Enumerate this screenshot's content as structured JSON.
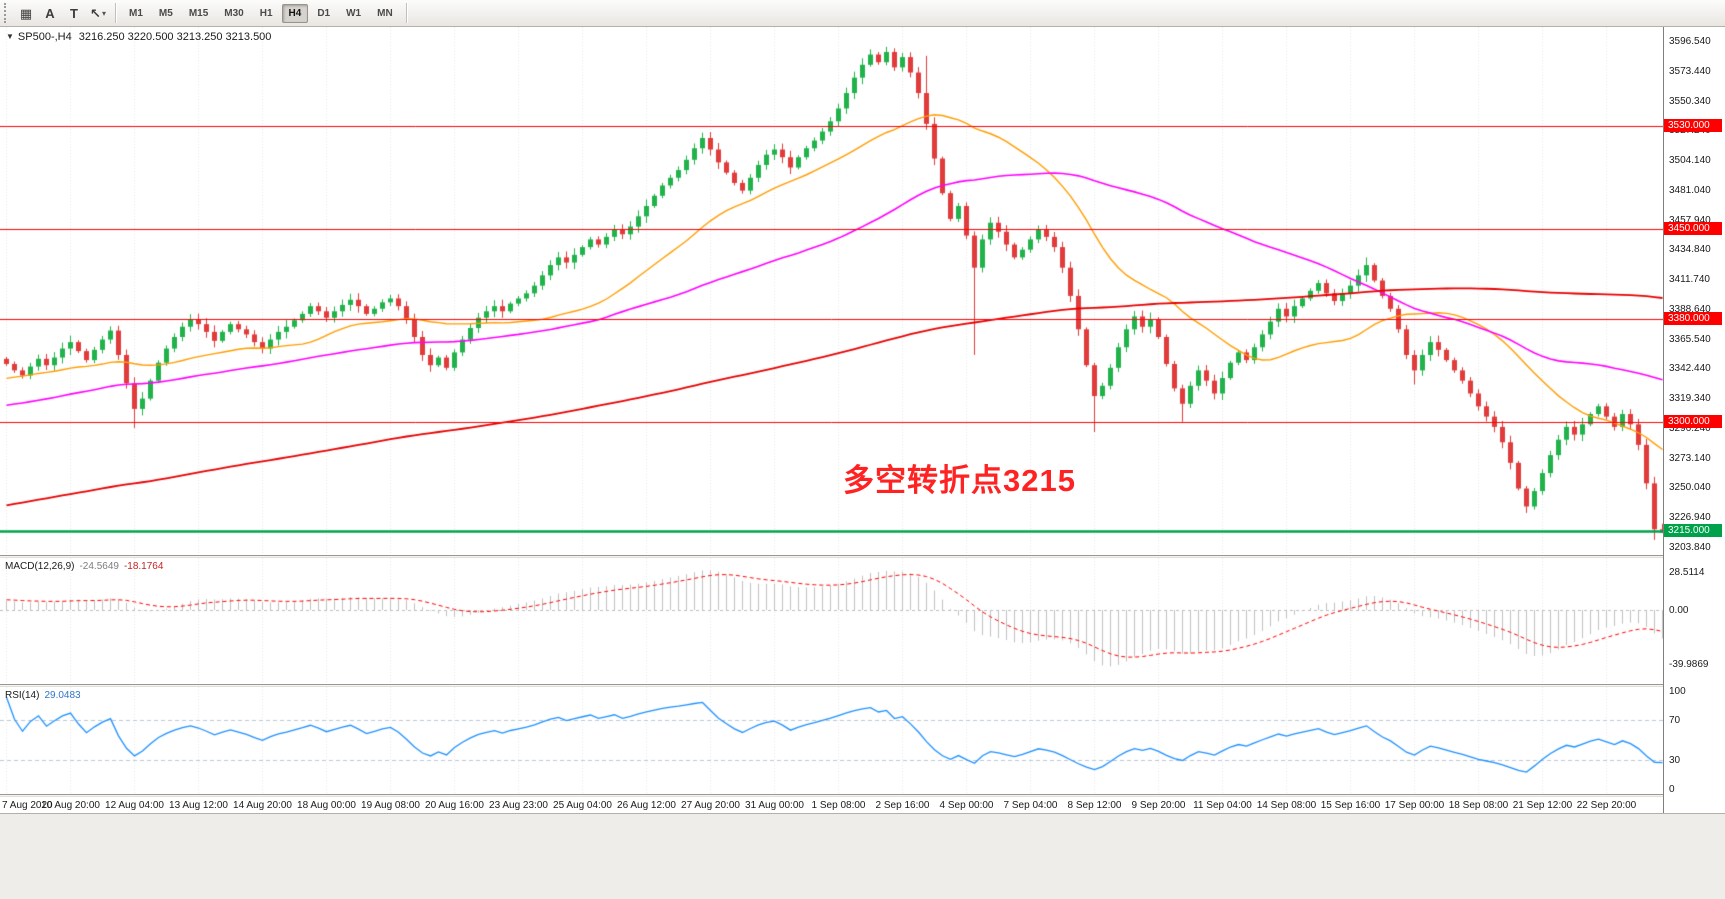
{
  "toolbar": {
    "tools": [
      {
        "name": "charts-grid",
        "icon": "grid-icon",
        "glyph": "▦"
      },
      {
        "name": "text",
        "icon": "text-tool-icon",
        "glyph": "A"
      },
      {
        "name": "text-label",
        "icon": "label-tool-icon",
        "glyph": "T"
      },
      {
        "name": "arrows",
        "icon": "arrow-tool-icon",
        "glyph": "↖",
        "caret": true
      }
    ],
    "timeframes": [
      "M1",
      "M5",
      "M15",
      "M30",
      "H1",
      "H4",
      "D1",
      "W1",
      "MN"
    ],
    "active_timeframe": "H4"
  },
  "chart": {
    "header": {
      "symbol_period": "SP500-,H4",
      "ohlc": "3216.250 3220.500 3213.250 3213.500"
    },
    "annotation": {
      "text": "多空转折点3215",
      "color": "#ff2222"
    }
  },
  "macd": {
    "label": "MACD(12,26,9)",
    "value_main": "-24.5649",
    "value_signal": "-18.1764",
    "ticks": [
      "28.5114",
      "0.00",
      "-39.9869"
    ],
    "tick_values": [
      28.5114,
      0,
      -39.9869
    ],
    "params": {
      "fast": 12,
      "slow": 26,
      "signal": 9
    }
  },
  "rsi": {
    "label": "RSI(14)",
    "value": "29.0483",
    "period": 14,
    "ticks": [
      "100",
      "70",
      "30",
      "0"
    ],
    "tick_values": [
      100,
      70,
      30,
      0
    ],
    "levels": [
      70,
      30
    ]
  },
  "chart_data": {
    "type": "candlestick",
    "symbol": "SP500-",
    "period": "H4",
    "y_axis": {
      "min": 3202.44,
      "max": 3596.54
    },
    "price_axis_labels": [
      "3596.540",
      "3573.440",
      "3550.340",
      "3527.240",
      "3504.140",
      "3481.040",
      "3457.940",
      "3434.840",
      "3411.740",
      "3388.640",
      "3365.540",
      "3342.440",
      "3319.340",
      "3296.240",
      "3273.140",
      "3250.040",
      "3226.940",
      "3203.840"
    ],
    "time_labels": [
      "7 Aug 2020",
      "10 Aug 20:00",
      "12 Aug 04:00",
      "13 Aug 12:00",
      "14 Aug 20:00",
      "18 Aug 00:00",
      "19 Aug 08:00",
      "20 Aug 16:00",
      "23 Aug 23:00",
      "25 Aug 04:00",
      "26 Aug 12:00",
      "27 Aug 20:00",
      "31 Aug 00:00",
      "1 Sep 08:00",
      "2 Sep 16:00",
      "4 Sep 00:00",
      "7 Sep 04:00",
      "8 Sep 12:00",
      "9 Sep 20:00",
      "11 Sep 04:00",
      "14 Sep 08:00",
      "15 Sep 16:00",
      "17 Sep 00:00",
      "18 Sep 08:00",
      "21 Sep 12:00",
      "22 Sep 20:00"
    ],
    "open_first": 3349,
    "closes": [
      3345,
      3340,
      3336,
      3343,
      3349,
      3344,
      3350,
      3357,
      3362,
      3355,
      3348,
      3356,
      3364,
      3371,
      3352,
      3330,
      3310,
      3318,
      3332,
      3346,
      3357,
      3366,
      3374,
      3380,
      3376,
      3370,
      3363,
      3370,
      3376,
      3372,
      3368,
      3362,
      3357,
      3364,
      3370,
      3374,
      3379,
      3384,
      3390,
      3386,
      3381,
      3386,
      3391,
      3395,
      3390,
      3384,
      3388,
      3393,
      3396,
      3390,
      3380,
      3366,
      3352,
      3344,
      3350,
      3342,
      3354,
      3364,
      3373,
      3381,
      3386,
      3390,
      3386,
      3392,
      3396,
      3400,
      3406,
      3414,
      3422,
      3428,
      3424,
      3430,
      3436,
      3442,
      3438,
      3444,
      3450,
      3446,
      3452,
      3460,
      3468,
      3476,
      3484,
      3490,
      3496,
      3504,
      3513,
      3521,
      3512,
      3502,
      3494,
      3486,
      3480,
      3490,
      3500,
      3508,
      3512,
      3506,
      3498,
      3506,
      3513,
      3519,
      3526,
      3534,
      3544,
      3556,
      3568,
      3578,
      3586,
      3580,
      3588,
      3576,
      3584,
      3572,
      3556,
      3532,
      3505,
      3478,
      3458,
      3468,
      3445,
      3420,
      3442,
      3455,
      3448,
      3438,
      3428,
      3434,
      3442,
      3450,
      3444,
      3436,
      3420,
      3398,
      3372,
      3344,
      3320,
      3328,
      3342,
      3358,
      3372,
      3382,
      3374,
      3380,
      3366,
      3345,
      3326,
      3314,
      3328,
      3340,
      3332,
      3322,
      3334,
      3346,
      3354,
      3348,
      3358,
      3368,
      3378,
      3388,
      3382,
      3390,
      3396,
      3402,
      3408,
      3400,
      3394,
      3400,
      3406,
      3414,
      3422,
      3410,
      3398,
      3388,
      3372,
      3352,
      3340,
      3352,
      3362,
      3356,
      3348,
      3340,
      3332,
      3322,
      3312,
      3304,
      3296,
      3284,
      3268,
      3248,
      3234,
      3246,
      3260,
      3274,
      3286,
      3296,
      3290,
      3298,
      3306,
      3312,
      3304,
      3296,
      3306,
      3298,
      3282,
      3252,
      3216.25,
      3213.5
    ],
    "wick_overrides": {
      "16": {
        "low": 3295
      },
      "108": {
        "high": 3590
      },
      "110": {
        "high": 3592
      },
      "115": {
        "high": 3585
      },
      "121": {
        "low": 3352
      },
      "136": {
        "low": 3292
      },
      "147": {
        "low": 3300
      },
      "170": {
        "high": 3428
      },
      "176": {
        "low": 3329
      },
      "190": {
        "low": 3229
      },
      "206": {
        "low": 3208
      },
      "207": {
        "high": 3220.5,
        "low": 3213.25
      }
    },
    "hlines": [
      {
        "price": 3530,
        "label": "3530.000",
        "color": "#ff0000",
        "width": 1
      },
      {
        "price": 3450,
        "label": "3450.000",
        "color": "#ff0000",
        "width": 1
      },
      {
        "price": 3380,
        "label": "3380.000",
        "color": "#ff0000",
        "width": 1
      },
      {
        "price": 3300,
        "label": "3300.000",
        "color": "#ff0000",
        "width": 1
      },
      {
        "price": 3215,
        "label": "3215.000",
        "color": "#00a14b",
        "width": 2.5
      }
    ],
    "moving_averages": [
      {
        "period": 24,
        "color": "#ff9c00",
        "width": 1.4
      },
      {
        "period": 60,
        "color": "#ff00ff",
        "width": 1.6
      },
      {
        "period": 200,
        "color": "#e60000",
        "width": 1.8
      }
    ],
    "style": {
      "candle_up": "#21b24c",
      "candle_down": "#e13b3b",
      "grid": "#e8e8e8",
      "macd_histogram": "#c0c0c0",
      "macd_signal": "#ff0000",
      "rsi_line": "#1e90ff",
      "rsi_level": "#b9c7d9"
    }
  }
}
